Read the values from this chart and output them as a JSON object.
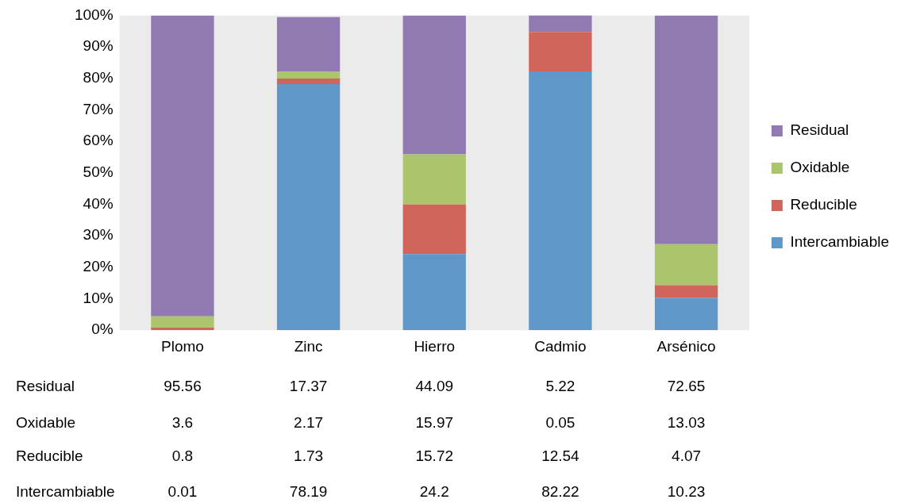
{
  "chart_data": {
    "type": "bar",
    "stacked": true,
    "categories": [
      "Plomo",
      "Zinc",
      "Hierro",
      "Cadmio",
      "Arsénico"
    ],
    "series": [
      {
        "name": "Intercambiable",
        "color": "#6097c9",
        "values": [
          0.01,
          78.19,
          24.2,
          82.22,
          10.23
        ]
      },
      {
        "name": "Reducible",
        "color": "#d0655b",
        "values": [
          0.8,
          1.73,
          15.72,
          12.54,
          4.07
        ]
      },
      {
        "name": "Oxidable",
        "color": "#aac56b",
        "values": [
          3.6,
          2.17,
          15.97,
          0.05,
          13.03
        ]
      },
      {
        "name": "Residual",
        "color": "#9179b1",
        "values": [
          95.56,
          17.37,
          44.09,
          5.22,
          72.65
        ]
      }
    ],
    "ylim": [
      0,
      100
    ],
    "yticks": [
      {
        "value": 0,
        "label": "0%"
      },
      {
        "value": 10,
        "label": "10%"
      },
      {
        "value": 20,
        "label": "20%"
      },
      {
        "value": 30,
        "label": "30%"
      },
      {
        "value": 40,
        "label": "40%"
      },
      {
        "value": 50,
        "label": "50%"
      },
      {
        "value": 60,
        "label": "60%"
      },
      {
        "value": 70,
        "label": "70%"
      },
      {
        "value": 80,
        "label": "80%"
      },
      {
        "value": 90,
        "label": "90%"
      },
      {
        "value": 100,
        "label": "100%"
      }
    ],
    "legend": "right",
    "data_labels": true
  }
}
